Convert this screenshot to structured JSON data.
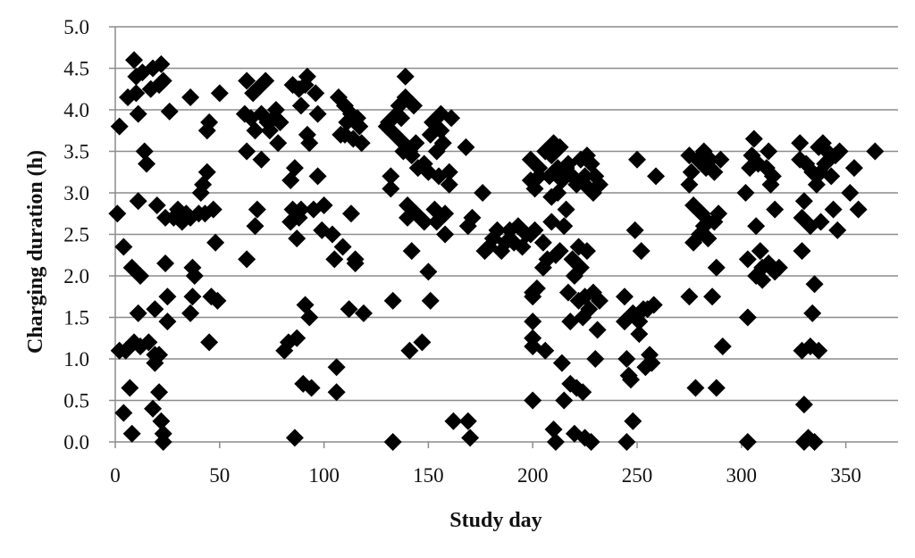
{
  "chart_data": {
    "type": "scatter",
    "title": "",
    "xlabel": "Study day",
    "ylabel": "Charging duration (h)",
    "xlim": [
      0,
      375
    ],
    "ylim": [
      0,
      5
    ],
    "x_ticks": [
      "0",
      "50",
      "100",
      "150",
      "200",
      "250",
      "300",
      "350"
    ],
    "y_ticks": [
      "0.0",
      "0.5",
      "1.0",
      "1.5",
      "2.0",
      "2.5",
      "3.0",
      "3.5",
      "4.0",
      "4.5",
      "5.0"
    ],
    "grid": "horizontal",
    "marker": "diamond",
    "marker_color": "#000000",
    "points": [
      [
        2,
        3.8
      ],
      [
        1,
        2.75
      ],
      [
        2,
        1.1
      ],
      [
        4,
        2.35
      ],
      [
        4,
        0.35
      ],
      [
        5,
        1.1
      ],
      [
        6,
        4.15
      ],
      [
        7,
        0.65
      ],
      [
        8,
        2.1
      ],
      [
        8,
        0.1
      ],
      [
        9,
        4.6
      ],
      [
        9,
        1.2
      ],
      [
        10,
        4.4
      ],
      [
        10,
        4.2
      ],
      [
        11,
        3.95
      ],
      [
        11,
        1.55
      ],
      [
        11,
        2.9
      ],
      [
        12,
        2.0
      ],
      [
        12,
        1.15
      ],
      [
        13,
        4.45
      ],
      [
        14,
        3.5
      ],
      [
        15,
        3.35
      ],
      [
        16,
        1.2
      ],
      [
        17,
        4.25
      ],
      [
        18,
        4.5
      ],
      [
        18,
        0.4
      ],
      [
        19,
        1.6
      ],
      [
        19,
        1.05
      ],
      [
        19,
        0.95
      ],
      [
        20,
        2.85
      ],
      [
        21,
        0.6
      ],
      [
        21,
        4.3
      ],
      [
        21,
        1.05
      ],
      [
        22,
        4.55
      ],
      [
        22,
        0.25
      ],
      [
        23,
        4.35
      ],
      [
        23,
        0.1
      ],
      [
        23,
        0.0
      ],
      [
        24,
        2.15
      ],
      [
        24,
        2.7
      ],
      [
        25,
        1.75
      ],
      [
        25,
        1.45
      ],
      [
        26,
        3.98
      ],
      [
        28,
        2.7
      ],
      [
        30,
        2.8
      ],
      [
        32,
        2.65
      ],
      [
        34,
        2.75
      ],
      [
        36,
        4.15
      ],
      [
        36,
        2.7
      ],
      [
        36,
        1.55
      ],
      [
        37,
        1.75
      ],
      [
        37,
        2.1
      ],
      [
        38,
        2.0
      ],
      [
        40,
        2.75
      ],
      [
        41,
        3.0
      ],
      [
        42,
        3.1
      ],
      [
        43,
        2.75
      ],
      [
        44,
        3.75
      ],
      [
        44,
        3.25
      ],
      [
        45,
        3.85
      ],
      [
        45,
        1.2
      ],
      [
        46,
        1.75
      ],
      [
        47,
        2.8
      ],
      [
        48,
        2.4
      ],
      [
        49,
        1.7
      ],
      [
        50,
        4.2
      ],
      [
        62,
        3.95
      ],
      [
        63,
        4.35
      ],
      [
        63,
        3.5
      ],
      [
        63,
        2.2
      ],
      [
        65,
        3.9
      ],
      [
        66,
        4.2
      ],
      [
        67,
        3.75
      ],
      [
        67,
        2.6
      ],
      [
        68,
        2.8
      ],
      [
        68,
        4.25
      ],
      [
        70,
        3.4
      ],
      [
        70,
        3.95
      ],
      [
        72,
        4.35
      ],
      [
        73,
        3.85
      ],
      [
        74,
        3.75
      ],
      [
        76,
        3.9
      ],
      [
        77,
        4.0
      ],
      [
        78,
        3.6
      ],
      [
        79,
        3.85
      ],
      [
        81,
        1.1
      ],
      [
        83,
        1.2
      ],
      [
        84,
        2.65
      ],
      [
        84,
        3.15
      ],
      [
        85,
        4.3
      ],
      [
        85,
        2.8
      ],
      [
        86,
        0.05
      ],
      [
        86,
        3.3
      ],
      [
        87,
        2.45
      ],
      [
        87,
        1.25
      ],
      [
        88,
        4.25
      ],
      [
        88,
        2.7
      ],
      [
        89,
        4.05
      ],
      [
        89,
        2.8
      ],
      [
        90,
        0.7
      ],
      [
        91,
        1.65
      ],
      [
        91,
        4.3
      ],
      [
        92,
        3.7
      ],
      [
        92,
        4.4
      ],
      [
        93,
        3.6
      ],
      [
        93,
        1.5
      ],
      [
        94,
        0.65
      ],
      [
        95,
        2.8
      ],
      [
        96,
        4.2
      ],
      [
        97,
        3.2
      ],
      [
        97,
        3.95
      ],
      [
        99,
        2.55
      ],
      [
        100,
        2.85
      ],
      [
        104,
        2.5
      ],
      [
        105,
        2.2
      ],
      [
        106,
        0.9
      ],
      [
        106,
        0.6
      ],
      [
        107,
        4.15
      ],
      [
        108,
        3.7
      ],
      [
        109,
        2.35
      ],
      [
        110,
        4.05
      ],
      [
        110,
        3.7
      ],
      [
        111,
        3.85
      ],
      [
        112,
        1.6
      ],
      [
        113,
        2.75
      ],
      [
        113,
        3.95
      ],
      [
        114,
        3.65
      ],
      [
        115,
        2.2
      ],
      [
        115,
        2.15
      ],
      [
        116,
        3.9
      ],
      [
        117,
        3.8
      ],
      [
        118,
        3.6
      ],
      [
        119,
        1.55
      ],
      [
        130,
        3.8
      ],
      [
        131,
        3.85
      ],
      [
        132,
        3.05
      ],
      [
        132,
        3.2
      ],
      [
        133,
        1.7
      ],
      [
        133,
        0.0
      ],
      [
        134,
        3.7
      ],
      [
        135,
        3.95
      ],
      [
        136,
        4.05
      ],
      [
        137,
        3.9
      ],
      [
        138,
        3.5
      ],
      [
        138,
        3.6
      ],
      [
        139,
        4.4
      ],
      [
        139,
        4.15
      ],
      [
        140,
        2.85
      ],
      [
        140,
        2.7
      ],
      [
        141,
        3.5
      ],
      [
        141,
        1.1
      ],
      [
        142,
        3.45
      ],
      [
        142,
        2.3
      ],
      [
        143,
        4.05
      ],
      [
        144,
        3.6
      ],
      [
        144,
        2.75
      ],
      [
        145,
        3.3
      ],
      [
        147,
        1.2
      ],
      [
        148,
        3.35
      ],
      [
        148,
        2.65
      ],
      [
        150,
        3.25
      ],
      [
        150,
        2.05
      ],
      [
        151,
        3.7
      ],
      [
        151,
        1.7
      ],
      [
        152,
        3.85
      ],
      [
        153,
        2.8
      ],
      [
        154,
        3.5
      ],
      [
        154,
        2.65
      ],
      [
        155,
        3.2
      ],
      [
        156,
        3.95
      ],
      [
        156,
        3.75
      ],
      [
        157,
        3.6
      ],
      [
        158,
        2.75
      ],
      [
        158,
        2.5
      ],
      [
        160,
        3.25
      ],
      [
        160,
        3.1
      ],
      [
        161,
        3.9
      ],
      [
        162,
        0.25
      ],
      [
        168,
        3.55
      ],
      [
        169,
        2.6
      ],
      [
        169,
        0.25
      ],
      [
        170,
        0.05
      ],
      [
        171,
        2.7
      ],
      [
        176,
        3.0
      ],
      [
        177,
        2.3
      ],
      [
        179,
        2.35
      ],
      [
        181,
        2.45
      ],
      [
        183,
        2.55
      ],
      [
        185,
        2.3
      ],
      [
        187,
        2.4
      ],
      [
        189,
        2.55
      ],
      [
        191,
        2.4
      ],
      [
        193,
        2.6
      ],
      [
        195,
        2.35
      ],
      [
        197,
        2.5
      ],
      [
        199,
        2.5
      ],
      [
        199,
        3.4
      ],
      [
        199,
        3.15
      ],
      [
        200,
        1.75
      ],
      [
        200,
        1.8
      ],
      [
        200,
        1.45
      ],
      [
        200,
        1.25
      ],
      [
        200,
        1.15
      ],
      [
        200,
        0.5
      ],
      [
        201,
        3.05
      ],
      [
        201,
        2.55
      ],
      [
        202,
        1.85
      ],
      [
        203,
        3.3
      ],
      [
        203,
        3.2
      ],
      [
        205,
        2.4
      ],
      [
        205,
        2.1
      ],
      [
        206,
        3.5
      ],
      [
        206,
        1.1
      ],
      [
        207,
        2.2
      ],
      [
        208,
        3.2
      ],
      [
        209,
        3.45
      ],
      [
        209,
        2.95
      ],
      [
        209,
        2.65
      ],
      [
        210,
        3.6
      ],
      [
        210,
        0.15
      ],
      [
        211,
        2.25
      ],
      [
        211,
        0.0
      ],
      [
        212,
        3.3
      ],
      [
        212,
        3.0
      ],
      [
        213,
        3.55
      ],
      [
        213,
        2.3
      ],
      [
        214,
        3.15
      ],
      [
        214,
        0.95
      ],
      [
        215,
        2.6
      ],
      [
        215,
        0.5
      ],
      [
        216,
        3.3
      ],
      [
        216,
        2.8
      ],
      [
        217,
        3.35
      ],
      [
        217,
        1.8
      ],
      [
        218,
        1.45
      ],
      [
        218,
        0.7
      ],
      [
        219,
        3.2
      ],
      [
        219,
        2.2
      ],
      [
        220,
        2.0
      ],
      [
        220,
        0.1
      ],
      [
        221,
        3.1
      ],
      [
        221,
        0.65
      ],
      [
        222,
        2.35
      ],
      [
        222,
        1.7
      ],
      [
        223,
        3.4
      ],
      [
        223,
        2.1
      ],
      [
        224,
        1.5
      ],
      [
        224,
        0.6
      ],
      [
        225,
        3.2
      ],
      [
        225,
        1.75
      ],
      [
        225,
        0.05
      ],
      [
        226,
        3.45
      ],
      [
        226,
        2.3
      ],
      [
        227,
        3.05
      ],
      [
        227,
        1.6
      ],
      [
        228,
        3.35
      ],
      [
        228,
        0.0
      ],
      [
        229,
        3.0
      ],
      [
        229,
        1.8
      ],
      [
        230,
        3.2
      ],
      [
        230,
        1.0
      ],
      [
        231,
        1.35
      ],
      [
        232,
        3.1
      ],
      [
        232,
        1.7
      ],
      [
        244,
        1.75
      ],
      [
        244,
        1.45
      ],
      [
        245,
        1.0
      ],
      [
        245,
        0.0
      ],
      [
        246,
        0.8
      ],
      [
        247,
        0.75
      ],
      [
        248,
        1.55
      ],
      [
        248,
        0.25
      ],
      [
        249,
        2.55
      ],
      [
        250,
        3.4
      ],
      [
        251,
        1.45
      ],
      [
        251,
        1.3
      ],
      [
        252,
        2.3
      ],
      [
        253,
        1.6
      ],
      [
        254,
        0.9
      ],
      [
        255,
        1.6
      ],
      [
        256,
        1.05
      ],
      [
        257,
        0.95
      ],
      [
        258,
        1.65
      ],
      [
        259,
        3.2
      ],
      [
        275,
        3.45
      ],
      [
        275,
        3.1
      ],
      [
        275,
        1.75
      ],
      [
        276,
        3.25
      ],
      [
        277,
        2.85
      ],
      [
        277,
        2.4
      ],
      [
        278,
        0.65
      ],
      [
        279,
        3.4
      ],
      [
        280,
        2.5
      ],
      [
        281,
        2.75
      ],
      [
        282,
        3.5
      ],
      [
        282,
        2.6
      ],
      [
        283,
        3.3
      ],
      [
        284,
        2.45
      ],
      [
        284,
        2.65
      ],
      [
        285,
        3.4
      ],
      [
        286,
        1.75
      ],
      [
        287,
        2.65
      ],
      [
        287,
        3.25
      ],
      [
        288,
        2.1
      ],
      [
        288,
        0.65
      ],
      [
        289,
        2.75
      ],
      [
        290,
        3.4
      ],
      [
        291,
        1.15
      ],
      [
        302,
        3.0
      ],
      [
        303,
        2.2
      ],
      [
        303,
        1.5
      ],
      [
        303,
        0.0
      ],
      [
        304,
        3.3
      ],
      [
        305,
        3.45
      ],
      [
        306,
        3.65
      ],
      [
        307,
        2.6
      ],
      [
        307,
        2.0
      ],
      [
        308,
        3.35
      ],
      [
        309,
        2.3
      ],
      [
        310,
        1.95
      ],
      [
        310,
        2.1
      ],
      [
        312,
        3.3
      ],
      [
        313,
        3.5
      ],
      [
        313,
        2.15
      ],
      [
        314,
        3.1
      ],
      [
        315,
        3.2
      ],
      [
        316,
        2.05
      ],
      [
        316,
        2.8
      ],
      [
        318,
        2.1
      ],
      [
        328,
        3.6
      ],
      [
        328,
        3.4
      ],
      [
        329,
        2.7
      ],
      [
        329,
        2.3
      ],
      [
        329,
        1.1
      ],
      [
        330,
        2.9
      ],
      [
        330,
        0.45
      ],
      [
        330,
        0.0
      ],
      [
        331,
        3.35
      ],
      [
        332,
        0.05
      ],
      [
        333,
        2.6
      ],
      [
        333,
        1.15
      ],
      [
        334,
        3.25
      ],
      [
        334,
        1.55
      ],
      [
        335,
        1.9
      ],
      [
        335,
        0.0
      ],
      [
        336,
        3.1
      ],
      [
        337,
        3.55
      ],
      [
        337,
        1.1
      ],
      [
        338,
        3.25
      ],
      [
        338,
        2.65
      ],
      [
        339,
        3.6
      ],
      [
        340,
        3.35
      ],
      [
        341,
        3.5
      ],
      [
        342,
        3.4
      ],
      [
        343,
        3.2
      ],
      [
        344,
        2.8
      ],
      [
        345,
        3.45
      ],
      [
        346,
        2.55
      ],
      [
        347,
        3.5
      ],
      [
        352,
        3.0
      ],
      [
        354,
        3.3
      ],
      [
        356,
        2.8
      ],
      [
        364,
        3.5
      ]
    ]
  }
}
